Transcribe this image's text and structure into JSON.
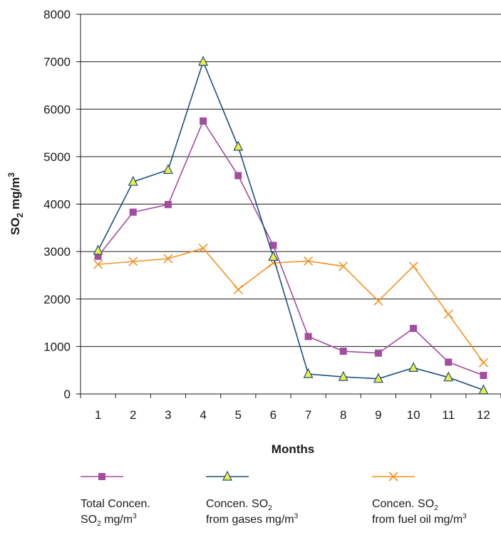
{
  "chart_data": {
    "type": "line",
    "x": [
      1,
      2,
      3,
      4,
      5,
      6,
      7,
      8,
      9,
      10,
      11,
      12
    ],
    "xlabel": "Months",
    "ylabel": {
      "prefix": "SO",
      "subscript": "2",
      "middle": " mg/m",
      "superscript": "3"
    },
    "ylim": [
      0,
      8000
    ],
    "yticks": [
      0,
      1000,
      2000,
      3000,
      4000,
      5000,
      6000,
      7000,
      8000
    ],
    "grid": "horizontal",
    "legend_position": "bottom",
    "series": [
      {
        "name": "Total Concen. SO2 mg/m3",
        "legend": {
          "line1": "Total Concen.",
          "line2_prefix": "SO",
          "line2_sub": "2",
          "line2_mid": " mg/m",
          "line2_sup": "3"
        },
        "color": "#a34d9f",
        "line_color": "#a34d9f",
        "marker": "square",
        "marker_fill": "#a34d9f",
        "values": [
          2900,
          3830,
          3990,
          5750,
          4600,
          3130,
          1210,
          900,
          860,
          1380,
          670,
          390
        ]
      },
      {
        "name": "Concen. SO2 from gases mg/m3",
        "legend": {
          "line1_prefix": "Concen. SO",
          "line1_sub": "2",
          "line2": "from gases mg/m",
          "line2_sup": "3"
        },
        "color": "#1c4f82",
        "line_color": "#1c4f82",
        "marker": "triangle",
        "marker_fill": "#f1ee3e",
        "values": [
          3020,
          4470,
          4720,
          7000,
          5210,
          2890,
          420,
          360,
          320,
          550,
          350,
          80
        ]
      },
      {
        "name": "Concen. SO2 from fuel oil mg/m3",
        "legend": {
          "line1_prefix": "Concen. SO",
          "line1_sub": "2",
          "line2": "from fuel oil mg/m",
          "line2_sup": "3"
        },
        "color": "#f29325",
        "line_color": "#f29325",
        "marker": "x",
        "marker_fill": "#f29325",
        "values": [
          2730,
          2790,
          2850,
          3070,
          2200,
          2760,
          2800,
          2690,
          1960,
          2690,
          1680,
          660
        ]
      }
    ]
  }
}
